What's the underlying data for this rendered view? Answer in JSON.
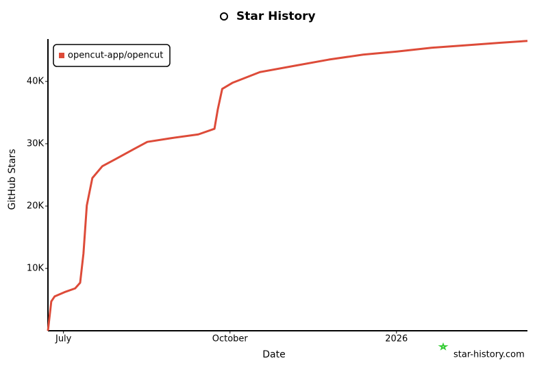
{
  "chart_data": {
    "type": "line",
    "title": "Star History",
    "x_label": "Date",
    "y_label": "GitHub Stars",
    "watermark": "star-history.com",
    "x": [
      6.72,
      6.78,
      6.84,
      7.02,
      7.21,
      7.3,
      7.36,
      7.42,
      7.52,
      7.7,
      7.95,
      8.26,
      8.51,
      8.94,
      9.43,
      9.72,
      9.78,
      9.86,
      10.05,
      10.54,
      11.16,
      11.78,
      12.4,
      13.01,
      13.63,
      14.25,
      14.86,
      15.36
    ],
    "series": [
      {
        "name": "opencut-app/opencut",
        "color": "#dd4b39",
        "values": [
          0,
          4700,
          5500,
          6200,
          6800,
          7700,
          12400,
          20100,
          24500,
          26400,
          27600,
          29100,
          30300,
          30900,
          31500,
          32400,
          35500,
          38800,
          39800,
          41500,
          42500,
          43500,
          44300,
          44800,
          45400,
          45800,
          46200,
          46500
        ]
      }
    ],
    "xlim": [
      6.72,
      15.36
    ],
    "xticks": [
      {
        "value": 7,
        "label": "July"
      },
      {
        "value": 10,
        "label": "October"
      },
      {
        "value": 13,
        "label": "2026"
      }
    ],
    "ylim": [
      0,
      46800
    ],
    "yticks": [
      {
        "value": 10000,
        "label": "10K"
      },
      {
        "value": 20000,
        "label": "20K"
      },
      {
        "value": 30000,
        "label": "30K"
      },
      {
        "value": 40000,
        "label": "40K"
      }
    ],
    "legend": "top-left"
  }
}
